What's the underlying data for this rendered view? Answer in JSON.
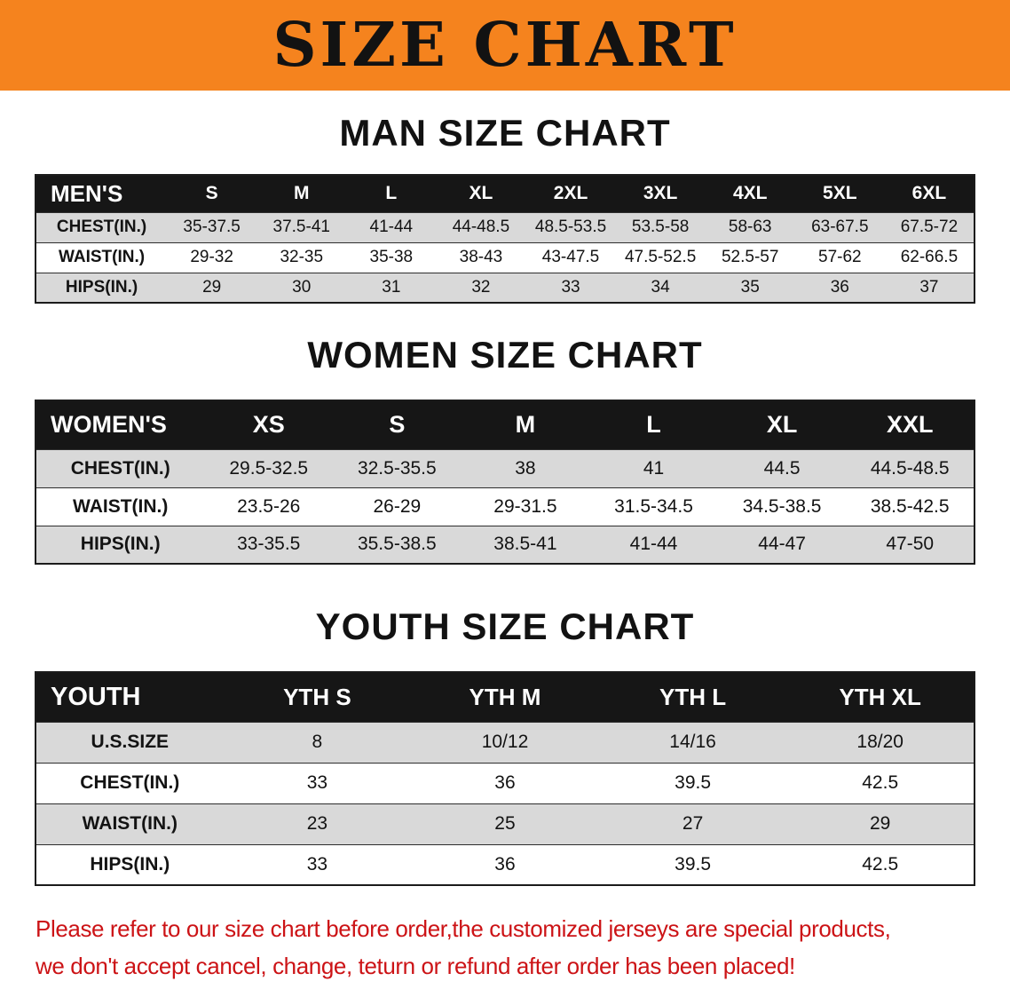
{
  "banner": {
    "title": "SIZE CHART",
    "bg_color": "#f5831e",
    "text_color": "#121212"
  },
  "headings": {
    "men": "MAN SIZE CHART",
    "women": "WOMEN SIZE CHART",
    "youth": "YOUTH SIZE CHART"
  },
  "men_table": {
    "corner": "MEN'S",
    "columns": [
      "S",
      "M",
      "L",
      "XL",
      "2XL",
      "3XL",
      "4XL",
      "5XL",
      "6XL"
    ],
    "rows": [
      {
        "label": "CHEST(IN.)",
        "values": [
          "35-37.5",
          "37.5-41",
          "41-44",
          "44-48.5",
          "48.5-53.5",
          "53.5-58",
          "58-63",
          "63-67.5",
          "67.5-72"
        ]
      },
      {
        "label": "WAIST(IN.)",
        "values": [
          "29-32",
          "32-35",
          "35-38",
          "38-43",
          "43-47.5",
          "47.5-52.5",
          "52.5-57",
          "57-62",
          "62-66.5"
        ]
      },
      {
        "label": "HIPS(IN.)",
        "values": [
          "29",
          "30",
          "31",
          "32",
          "33",
          "34",
          "35",
          "36",
          "37"
        ]
      }
    ]
  },
  "women_table": {
    "corner": "WOMEN'S",
    "columns": [
      "XS",
      "S",
      "M",
      "L",
      "XL",
      "XXL"
    ],
    "rows": [
      {
        "label": "CHEST(IN.)",
        "values": [
          "29.5-32.5",
          "32.5-35.5",
          "38",
          "41",
          "44.5",
          "44.5-48.5"
        ]
      },
      {
        "label": "WAIST(IN.)",
        "values": [
          "23.5-26",
          "26-29",
          "29-31.5",
          "31.5-34.5",
          "34.5-38.5",
          "38.5-42.5"
        ]
      },
      {
        "label": "HIPS(IN.)",
        "values": [
          "33-35.5",
          "35.5-38.5",
          "38.5-41",
          "41-44",
          "44-47",
          "47-50"
        ]
      }
    ]
  },
  "youth_table": {
    "corner": "YOUTH",
    "columns": [
      "YTH S",
      "YTH M",
      "YTH L",
      "YTH XL"
    ],
    "rows": [
      {
        "label": "U.S.SIZE",
        "values": [
          "8",
          "10/12",
          "14/16",
          "18/20"
        ]
      },
      {
        "label": "CHEST(IN.)",
        "values": [
          "33",
          "36",
          "39.5",
          "42.5"
        ]
      },
      {
        "label": "WAIST(IN.)",
        "values": [
          "23",
          "25",
          "27",
          "29"
        ]
      },
      {
        "label": "HIPS(IN.)",
        "values": [
          "33",
          "36",
          "39.5",
          "42.5"
        ]
      }
    ]
  },
  "disclaimer": {
    "text_color": "#cc1316",
    "line1": "Please refer to our size chart before order,the customized jerseys are special products,",
    "line2": "we don't accept cancel, change, teturn or refund after order has been placed!"
  }
}
